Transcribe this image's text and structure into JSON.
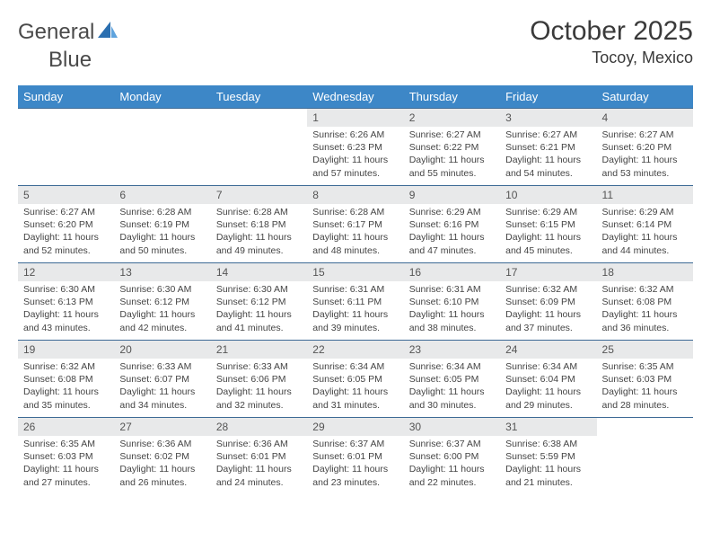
{
  "brand": {
    "word1": "General",
    "word2": "Blue"
  },
  "title": "October 2025",
  "location": "Tocoy, Mexico",
  "colors": {
    "header_bg": "#3d87c7",
    "header_text": "#ffffff",
    "row_border": "#3d6a95",
    "daynum_bg": "#e8e9ea",
    "text": "#444444",
    "logo_blue": "#2b6fb0"
  },
  "day_names": [
    "Sunday",
    "Monday",
    "Tuesday",
    "Wednesday",
    "Thursday",
    "Friday",
    "Saturday"
  ],
  "weeks": [
    [
      {
        "n": "",
        "empty": true,
        "l1": "",
        "l2": "",
        "l3": "",
        "l4": ""
      },
      {
        "n": "",
        "empty": true,
        "l1": "",
        "l2": "",
        "l3": "",
        "l4": ""
      },
      {
        "n": "",
        "empty": true,
        "l1": "",
        "l2": "",
        "l3": "",
        "l4": ""
      },
      {
        "n": "1",
        "l1": "Sunrise: 6:26 AM",
        "l2": "Sunset: 6:23 PM",
        "l3": "Daylight: 11 hours",
        "l4": "and 57 minutes."
      },
      {
        "n": "2",
        "l1": "Sunrise: 6:27 AM",
        "l2": "Sunset: 6:22 PM",
        "l3": "Daylight: 11 hours",
        "l4": "and 55 minutes."
      },
      {
        "n": "3",
        "l1": "Sunrise: 6:27 AM",
        "l2": "Sunset: 6:21 PM",
        "l3": "Daylight: 11 hours",
        "l4": "and 54 minutes."
      },
      {
        "n": "4",
        "l1": "Sunrise: 6:27 AM",
        "l2": "Sunset: 6:20 PM",
        "l3": "Daylight: 11 hours",
        "l4": "and 53 minutes."
      }
    ],
    [
      {
        "n": "5",
        "l1": "Sunrise: 6:27 AM",
        "l2": "Sunset: 6:20 PM",
        "l3": "Daylight: 11 hours",
        "l4": "and 52 minutes."
      },
      {
        "n": "6",
        "l1": "Sunrise: 6:28 AM",
        "l2": "Sunset: 6:19 PM",
        "l3": "Daylight: 11 hours",
        "l4": "and 50 minutes."
      },
      {
        "n": "7",
        "l1": "Sunrise: 6:28 AM",
        "l2": "Sunset: 6:18 PM",
        "l3": "Daylight: 11 hours",
        "l4": "and 49 minutes."
      },
      {
        "n": "8",
        "l1": "Sunrise: 6:28 AM",
        "l2": "Sunset: 6:17 PM",
        "l3": "Daylight: 11 hours",
        "l4": "and 48 minutes."
      },
      {
        "n": "9",
        "l1": "Sunrise: 6:29 AM",
        "l2": "Sunset: 6:16 PM",
        "l3": "Daylight: 11 hours",
        "l4": "and 47 minutes."
      },
      {
        "n": "10",
        "l1": "Sunrise: 6:29 AM",
        "l2": "Sunset: 6:15 PM",
        "l3": "Daylight: 11 hours",
        "l4": "and 45 minutes."
      },
      {
        "n": "11",
        "l1": "Sunrise: 6:29 AM",
        "l2": "Sunset: 6:14 PM",
        "l3": "Daylight: 11 hours",
        "l4": "and 44 minutes."
      }
    ],
    [
      {
        "n": "12",
        "l1": "Sunrise: 6:30 AM",
        "l2": "Sunset: 6:13 PM",
        "l3": "Daylight: 11 hours",
        "l4": "and 43 minutes."
      },
      {
        "n": "13",
        "l1": "Sunrise: 6:30 AM",
        "l2": "Sunset: 6:12 PM",
        "l3": "Daylight: 11 hours",
        "l4": "and 42 minutes."
      },
      {
        "n": "14",
        "l1": "Sunrise: 6:30 AM",
        "l2": "Sunset: 6:12 PM",
        "l3": "Daylight: 11 hours",
        "l4": "and 41 minutes."
      },
      {
        "n": "15",
        "l1": "Sunrise: 6:31 AM",
        "l2": "Sunset: 6:11 PM",
        "l3": "Daylight: 11 hours",
        "l4": "and 39 minutes."
      },
      {
        "n": "16",
        "l1": "Sunrise: 6:31 AM",
        "l2": "Sunset: 6:10 PM",
        "l3": "Daylight: 11 hours",
        "l4": "and 38 minutes."
      },
      {
        "n": "17",
        "l1": "Sunrise: 6:32 AM",
        "l2": "Sunset: 6:09 PM",
        "l3": "Daylight: 11 hours",
        "l4": "and 37 minutes."
      },
      {
        "n": "18",
        "l1": "Sunrise: 6:32 AM",
        "l2": "Sunset: 6:08 PM",
        "l3": "Daylight: 11 hours",
        "l4": "and 36 minutes."
      }
    ],
    [
      {
        "n": "19",
        "l1": "Sunrise: 6:32 AM",
        "l2": "Sunset: 6:08 PM",
        "l3": "Daylight: 11 hours",
        "l4": "and 35 minutes."
      },
      {
        "n": "20",
        "l1": "Sunrise: 6:33 AM",
        "l2": "Sunset: 6:07 PM",
        "l3": "Daylight: 11 hours",
        "l4": "and 34 minutes."
      },
      {
        "n": "21",
        "l1": "Sunrise: 6:33 AM",
        "l2": "Sunset: 6:06 PM",
        "l3": "Daylight: 11 hours",
        "l4": "and 32 minutes."
      },
      {
        "n": "22",
        "l1": "Sunrise: 6:34 AM",
        "l2": "Sunset: 6:05 PM",
        "l3": "Daylight: 11 hours",
        "l4": "and 31 minutes."
      },
      {
        "n": "23",
        "l1": "Sunrise: 6:34 AM",
        "l2": "Sunset: 6:05 PM",
        "l3": "Daylight: 11 hours",
        "l4": "and 30 minutes."
      },
      {
        "n": "24",
        "l1": "Sunrise: 6:34 AM",
        "l2": "Sunset: 6:04 PM",
        "l3": "Daylight: 11 hours",
        "l4": "and 29 minutes."
      },
      {
        "n": "25",
        "l1": "Sunrise: 6:35 AM",
        "l2": "Sunset: 6:03 PM",
        "l3": "Daylight: 11 hours",
        "l4": "and 28 minutes."
      }
    ],
    [
      {
        "n": "26",
        "l1": "Sunrise: 6:35 AM",
        "l2": "Sunset: 6:03 PM",
        "l3": "Daylight: 11 hours",
        "l4": "and 27 minutes."
      },
      {
        "n": "27",
        "l1": "Sunrise: 6:36 AM",
        "l2": "Sunset: 6:02 PM",
        "l3": "Daylight: 11 hours",
        "l4": "and 26 minutes."
      },
      {
        "n": "28",
        "l1": "Sunrise: 6:36 AM",
        "l2": "Sunset: 6:01 PM",
        "l3": "Daylight: 11 hours",
        "l4": "and 24 minutes."
      },
      {
        "n": "29",
        "l1": "Sunrise: 6:37 AM",
        "l2": "Sunset: 6:01 PM",
        "l3": "Daylight: 11 hours",
        "l4": "and 23 minutes."
      },
      {
        "n": "30",
        "l1": "Sunrise: 6:37 AM",
        "l2": "Sunset: 6:00 PM",
        "l3": "Daylight: 11 hours",
        "l4": "and 22 minutes."
      },
      {
        "n": "31",
        "l1": "Sunrise: 6:38 AM",
        "l2": "Sunset: 5:59 PM",
        "l3": "Daylight: 11 hours",
        "l4": "and 21 minutes."
      },
      {
        "n": "",
        "empty": true,
        "l1": "",
        "l2": "",
        "l3": "",
        "l4": ""
      }
    ]
  ]
}
